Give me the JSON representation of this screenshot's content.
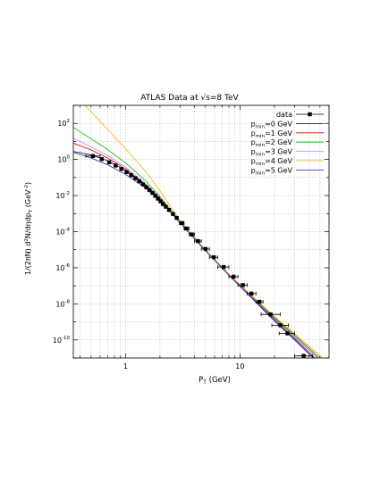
{
  "chart_data": {
    "type": "line",
    "title": "ATLAS Data at √s=8 TeV",
    "xlabel": "P_T (GeV)",
    "ylabel": "1/(2πN) d²N/dηdp_T (GeV⁻²)",
    "x_scale": "log",
    "y_scale": "log",
    "xlim": [
      0.35,
      60
    ],
    "ylim": [
      1e-11,
      1000
    ],
    "grid": true,
    "legend_position": "top-right",
    "x_ticks": [
      {
        "value": 1,
        "label": "1"
      },
      {
        "value": 10,
        "label": "10"
      }
    ],
    "y_ticks": [
      {
        "value": 100,
        "base": "10",
        "exp": "2"
      },
      {
        "value": 1,
        "base": "10",
        "exp": "0"
      },
      {
        "value": 0.01,
        "base": "10",
        "exp": "-2"
      },
      {
        "value": 0.0001,
        "base": "10",
        "exp": "-4"
      },
      {
        "value": 1e-06,
        "base": "10",
        "exp": "-6"
      },
      {
        "value": 1e-08,
        "base": "10",
        "exp": "-8"
      },
      {
        "value": 1e-10,
        "base": "10",
        "exp": "-10"
      }
    ],
    "data_series": {
      "name": "data",
      "color": "#000000",
      "points": [
        {
          "x": 0.52,
          "y": 1.55,
          "xerr": [
            0.45,
            0.6
          ]
        },
        {
          "x": 0.62,
          "y": 1.05
        },
        {
          "x": 0.72,
          "y": 0.7
        },
        {
          "x": 0.82,
          "y": 0.46
        },
        {
          "x": 0.92,
          "y": 0.3
        },
        {
          "x": 1.02,
          "y": 0.2
        },
        {
          "x": 1.12,
          "y": 0.135
        },
        {
          "x": 1.22,
          "y": 0.092
        },
        {
          "x": 1.32,
          "y": 0.062
        },
        {
          "x": 1.42,
          "y": 0.042
        },
        {
          "x": 1.52,
          "y": 0.029
        },
        {
          "x": 1.62,
          "y": 0.02
        },
        {
          "x": 1.72,
          "y": 0.014
        },
        {
          "x": 1.82,
          "y": 0.0097
        },
        {
          "x": 1.92,
          "y": 0.0068
        },
        {
          "x": 2.02,
          "y": 0.0048
        },
        {
          "x": 2.12,
          "y": 0.0034
        },
        {
          "x": 2.25,
          "y": 0.0024
        },
        {
          "x": 2.4,
          "y": 0.0016
        },
        {
          "x": 2.6,
          "y": 0.00095
        },
        {
          "x": 2.8,
          "y": 0.00058
        },
        {
          "x": 3.1,
          "y": 0.0003,
          "xerr": [
            2.95,
            3.25
          ]
        },
        {
          "x": 3.4,
          "y": 0.00015,
          "xerr": [
            3.25,
            3.6
          ]
        },
        {
          "x": 3.8,
          "y": 7e-05,
          "xerr": [
            3.6,
            4.0
          ]
        },
        {
          "x": 4.3,
          "y": 3e-05,
          "xerr": [
            4.0,
            4.6
          ]
        },
        {
          "x": 5.0,
          "y": 1.1e-05,
          "xerr": [
            4.6,
            5.4
          ]
        },
        {
          "x": 5.9,
          "y": 3.8e-06,
          "xerr": [
            5.4,
            6.4
          ]
        },
        {
          "x": 7.2,
          "y": 1.1e-06,
          "xerr": [
            6.4,
            8.0
          ]
        },
        {
          "x": 8.8,
          "y": 3.2e-07,
          "xerr": [
            8.0,
            9.6
          ]
        },
        {
          "x": 10.6,
          "y": 1.1e-07,
          "xerr": [
            9.6,
            11.6
          ]
        },
        {
          "x": 12.6,
          "y": 3.7e-08,
          "xerr": [
            11.6,
            13.8
          ]
        },
        {
          "x": 14.8,
          "y": 1.3e-08,
          "xerr": [
            13.8,
            15.9
          ]
        },
        {
          "x": 18.5,
          "y": 2.6e-09,
          "xerr": [
            15.3,
            22.5
          ]
        },
        {
          "x": 22.5,
          "y": 6.5e-10,
          "xerr": [
            19.0,
            26.5
          ]
        },
        {
          "x": 26.0,
          "y": 2.3e-10,
          "xerr": [
            22.0,
            30.0
          ]
        },
        {
          "x": 36.0,
          "y": 1.3e-11,
          "xerr": [
            30.0,
            43.0
          ]
        }
      ]
    },
    "series": [
      {
        "name": "p_min=0 GeV",
        "sub": "min",
        "rest": "=0 GeV",
        "color": "#000000",
        "x": [
          0.35,
          0.5,
          0.7,
          1.0,
          1.5,
          2.0,
          3.0,
          5.0,
          8.0,
          12.0,
          20.0,
          30.0,
          45.0,
          60.0
        ],
        "y": [
          2.8,
          1.8,
          0.85,
          0.25,
          0.038,
          0.0072,
          0.00033,
          9e-06,
          4e-07,
          3.2e-08,
          1.3e-09,
          1.2e-10,
          1e-11,
          1.6e-12
        ]
      },
      {
        "name": "p_min=1 GeV",
        "sub": "min",
        "rest": "=1 GeV",
        "color": "#cc0000",
        "x": [
          0.35,
          0.5,
          0.7,
          1.0,
          1.5,
          2.0,
          3.0,
          5.0,
          8.0,
          12.0,
          20.0,
          30.0,
          45.0,
          60.0
        ],
        "y": [
          8.0,
          3.4,
          1.2,
          0.3,
          0.04,
          0.0074,
          0.00034,
          9.5e-06,
          4.3e-07,
          3.6e-08,
          1.6e-09,
          1.6e-10,
          1.5e-11,
          2.6e-12
        ]
      },
      {
        "name": "p_min=2 GeV",
        "sub": "min",
        "rest": "=2 GeV",
        "color": "#00c000",
        "x": [
          0.35,
          0.5,
          0.7,
          1.0,
          1.5,
          2.0,
          3.0,
          5.0,
          8.0,
          12.0,
          20.0,
          30.0,
          45.0,
          60.0
        ],
        "y": [
          60.0,
          14.0,
          3.5,
          0.65,
          0.065,
          0.009,
          0.00036,
          9.6e-06,
          4.4e-07,
          3.8e-08,
          1.8e-09,
          1.9e-10,
          1.9e-11,
          3.5e-12
        ]
      },
      {
        "name": "p_min=3 GeV",
        "sub": "min",
        "rest": "=3 GeV",
        "color": "#d080ff",
        "x": [
          0.35,
          0.5,
          0.7,
          1.0,
          1.5,
          2.0,
          3.0,
          5.0,
          8.0,
          12.0,
          20.0,
          30.0,
          45.0,
          60.0
        ],
        "y": [
          15.0,
          5.0,
          1.6,
          0.38,
          0.045,
          0.0077,
          0.00034,
          9.4e-06,
          4.2e-07,
          3.4e-08,
          1.5e-09,
          1.5e-10,
          1.4e-11,
          2.4e-12
        ]
      },
      {
        "name": "p_min=4 GeV",
        "sub": "min",
        "rest": "=4 GeV",
        "color": "#ffaa00",
        "x": [
          0.35,
          0.5,
          0.7,
          1.0,
          1.5,
          2.0,
          3.0,
          5.0,
          8.0,
          12.0,
          20.0,
          30.0,
          45.0,
          60.0
        ],
        "y": [
          5000.0,
          450.0,
          45.0,
          4.0,
          0.22,
          0.018,
          0.0004,
          9.8e-06,
          4.6e-07,
          4e-08,
          2e-09,
          2.2e-10,
          2.4e-11,
          5e-12
        ]
      },
      {
        "name": "p_min=5 GeV",
        "sub": "min",
        "rest": "=5 GeV",
        "color": "#2020c0",
        "x": [
          0.35,
          0.5,
          0.7,
          1.0,
          1.5,
          2.0,
          3.0,
          5.0,
          8.0,
          12.0,
          20.0,
          30.0,
          45.0,
          60.0
        ],
        "y": [
          2.5,
          1.2,
          0.5,
          0.15,
          0.026,
          0.0056,
          0.0003,
          8.7e-06,
          3.8e-07,
          2.9e-08,
          1.1e-09,
          1e-10,
          8e-12,
          1.2e-12
        ]
      }
    ]
  }
}
